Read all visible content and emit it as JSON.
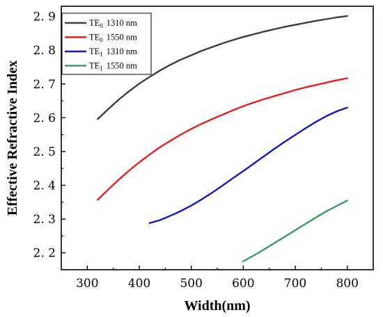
{
  "chart_data": {
    "type": "line",
    "title": "",
    "xlabel": "Width(nm)",
    "ylabel": "Effective Refractive Index",
    "xlim": [
      250,
      850
    ],
    "ylim": [
      2.15,
      2.93
    ],
    "xticks": [
      300,
      400,
      500,
      600,
      700,
      800
    ],
    "yticks": [
      2.2,
      2.3,
      2.4,
      2.5,
      2.6,
      2.7,
      2.8,
      2.9
    ],
    "xtick_labels": [
      "300",
      "400",
      "500",
      "600",
      "700",
      "800"
    ],
    "ytick_labels": [
      "2. 2",
      "2. 3",
      "2. 4",
      "2. 5",
      "2. 6",
      "2. 7",
      "2. 8",
      "2. 9"
    ],
    "grid": false,
    "legend_position": "top-left",
    "series": [
      {
        "name": "TE0 1310 nm",
        "label_main": "TE",
        "label_sub": "0",
        "label_rest": "1310 nm",
        "color": "#3c3c3c",
        "x": [
          320,
          340,
          360,
          380,
          400,
          420,
          440,
          460,
          480,
          500,
          520,
          540,
          560,
          580,
          600,
          620,
          640,
          660,
          680,
          700,
          720,
          740,
          760,
          780,
          800
        ],
        "y": [
          2.596,
          2.625,
          2.653,
          2.678,
          2.701,
          2.721,
          2.74,
          2.757,
          2.772,
          2.785,
          2.798,
          2.809,
          2.82,
          2.83,
          2.839,
          2.847,
          2.855,
          2.862,
          2.869,
          2.875,
          2.881,
          2.887,
          2.892,
          2.897,
          2.901
        ]
      },
      {
        "name": "TE0 1550 nm",
        "label_main": "TE",
        "label_sub": "0",
        "label_rest": "1550 nm",
        "color": "#ee1c1c",
        "x": [
          320,
          340,
          360,
          380,
          400,
          420,
          440,
          460,
          480,
          500,
          520,
          540,
          560,
          580,
          600,
          620,
          640,
          660,
          680,
          700,
          720,
          740,
          760,
          780,
          800
        ],
        "y": [
          2.357,
          2.387,
          2.416,
          2.443,
          2.468,
          2.491,
          2.513,
          2.532,
          2.55,
          2.567,
          2.582,
          2.596,
          2.609,
          2.622,
          2.634,
          2.645,
          2.655,
          2.664,
          2.673,
          2.682,
          2.69,
          2.697,
          2.704,
          2.711,
          2.717
        ]
      },
      {
        "name": "TE1 1310 nm",
        "label_main": "TE",
        "label_sub": "1",
        "label_rest": "1310 nm",
        "color": "#1515c8",
        "x": [
          420,
          440,
          460,
          480,
          500,
          520,
          540,
          560,
          580,
          600,
          620,
          640,
          660,
          680,
          700,
          720,
          740,
          760,
          780,
          800
        ],
        "y": [
          2.288,
          2.297,
          2.31,
          2.324,
          2.34,
          2.358,
          2.378,
          2.399,
          2.421,
          2.442,
          2.464,
          2.486,
          2.508,
          2.529,
          2.549,
          2.569,
          2.588,
          2.605,
          2.619,
          2.63
        ]
      },
      {
        "name": "TE1 1550 nm",
        "label_main": "TE",
        "label_sub": "1",
        "label_rest": "1550 nm",
        "color": "#3a9a66",
        "x": [
          600,
          620,
          640,
          660,
          680,
          700,
          720,
          740,
          760,
          780,
          800
        ],
        "y": [
          2.175,
          2.192,
          2.21,
          2.229,
          2.248,
          2.267,
          2.286,
          2.305,
          2.323,
          2.339,
          2.355
        ]
      }
    ]
  }
}
